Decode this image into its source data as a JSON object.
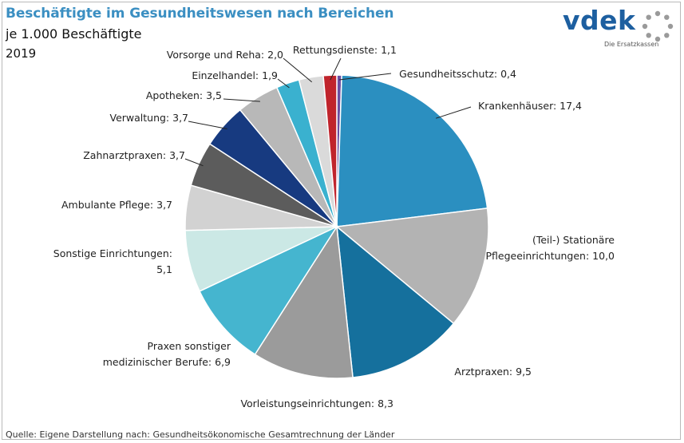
{
  "title": "Beschäftigte im Gesundheitswesen nach Bereichen",
  "subtitle": "je 1.000 Beschäftigte",
  "year": "2019",
  "source": "Quelle: Eigene Darstellung nach: Gesundheitsökonomische Gesamtrechnung der Länder",
  "logo": {
    "word": "vdek",
    "tagline": "Die Ersatzkassen",
    "ring_icon": "dotted-ring-icon",
    "color": "#1d5fa0"
  },
  "chart_data": {
    "type": "pie",
    "title": "Beschäftigte im Gesundheitswesen nach Bereichen",
    "unit": "je 1.000 Beschäftigte",
    "start": "12 o'clock, clockwise",
    "slices": [
      {
        "label": "Gesundheitsschutz",
        "value": 0.4,
        "value_label": "0,4",
        "color": "#6b4fa3",
        "label_lines": [
          "Gesundheitsschutz: 0,4"
        ]
      },
      {
        "label": "Krankenhäuser",
        "value": 17.4,
        "value_label": "17,4",
        "color": "#2b8fc0",
        "label_lines": [
          "Krankenhäuser: 17,4"
        ]
      },
      {
        "label": "(Teil-) Stationäre Pflegeeinrichtungen",
        "value": 10.0,
        "value_label": "10,0",
        "color": "#b3b3b3",
        "label_lines": [
          "(Teil-) Stationäre",
          "Pflegeeinrichtungen: 10,0"
        ]
      },
      {
        "label": "Arztpraxen",
        "value": 9.5,
        "value_label": "9,5",
        "color": "#15709d",
        "label_lines": [
          "Arztpraxen: 9,5"
        ]
      },
      {
        "label": "Vorleistungseinrichtungen",
        "value": 8.3,
        "value_label": "8,3",
        "color": "#9b9b9b",
        "label_lines": [
          "Vorleistungseinrichtungen: 8,3"
        ]
      },
      {
        "label": "Praxen sonstiger medizinischer Berufe",
        "value": 6.9,
        "value_label": "6,9",
        "color": "#45b5cf",
        "label_lines": [
          "Praxen sonstiger",
          "medizinischer Berufe: 6,9"
        ]
      },
      {
        "label": "Sonstige Einrichtungen",
        "value": 5.1,
        "value_label": "5,1",
        "color": "#cbe8e5",
        "label_lines": [
          "Sonstige Einrichtungen:",
          "5,1"
        ]
      },
      {
        "label": "Ambulante Pflege",
        "value": 3.7,
        "value_label": "3,7",
        "color": "#d2d2d2",
        "label_lines": [
          "Ambulante Pflege: 3,7"
        ]
      },
      {
        "label": "Zahnarztpraxen",
        "value": 3.7,
        "value_label": "3,7",
        "color": "#5c5c5c",
        "label_lines": [
          "Zahnarztpraxen: 3,7"
        ]
      },
      {
        "label": "Verwaltung",
        "value": 3.7,
        "value_label": "3,7",
        "color": "#173a80",
        "label_lines": [
          "Verwaltung: 3,7"
        ]
      },
      {
        "label": "Apotheken",
        "value": 3.5,
        "value_label": "3,5",
        "color": "#b8b8b8",
        "label_lines": [
          "Apotheken: 3,5"
        ]
      },
      {
        "label": "Einzelhandel",
        "value": 1.9,
        "value_label": "1,9",
        "color": "#3ab1cf",
        "label_lines": [
          "Einzelhandel: 1,9"
        ]
      },
      {
        "label": "Vorsorge und Reha",
        "value": 2.0,
        "value_label": "2,0",
        "color": "#dadada",
        "label_lines": [
          "Vorsorge und Reha: 2,0"
        ]
      },
      {
        "label": "Rettungsdienste",
        "value": 1.1,
        "value_label": "1,1",
        "color": "#c0242c",
        "label_lines": [
          "Rettungsdienste: 1,1"
        ]
      }
    ]
  }
}
